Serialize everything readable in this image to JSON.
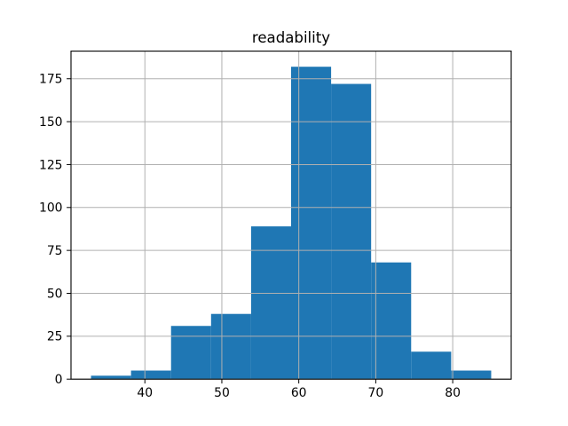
{
  "chart_data": {
    "type": "bar",
    "subtype": "histogram",
    "title": "readability",
    "xlabel": "",
    "ylabel": "",
    "bin_edges": [
      33.0,
      38.2,
      43.4,
      48.6,
      53.8,
      59.0,
      64.2,
      69.4,
      74.6,
      79.8,
      85.0
    ],
    "counts": [
      2,
      5,
      31,
      38,
      89,
      182,
      172,
      68,
      16,
      5
    ],
    "xticks": [
      40,
      50,
      60,
      70,
      80
    ],
    "yticks": [
      0,
      25,
      50,
      75,
      100,
      125,
      150,
      175
    ],
    "xlim": [
      30.4,
      87.6
    ],
    "ylim": [
      0,
      191.1
    ],
    "grid": true,
    "grid_above_bars": true,
    "legend": false,
    "bar_color": "#1f77b4",
    "grid_color": "#b0b0b0",
    "axis_color": "#000000",
    "background_color": "#ffffff"
  }
}
